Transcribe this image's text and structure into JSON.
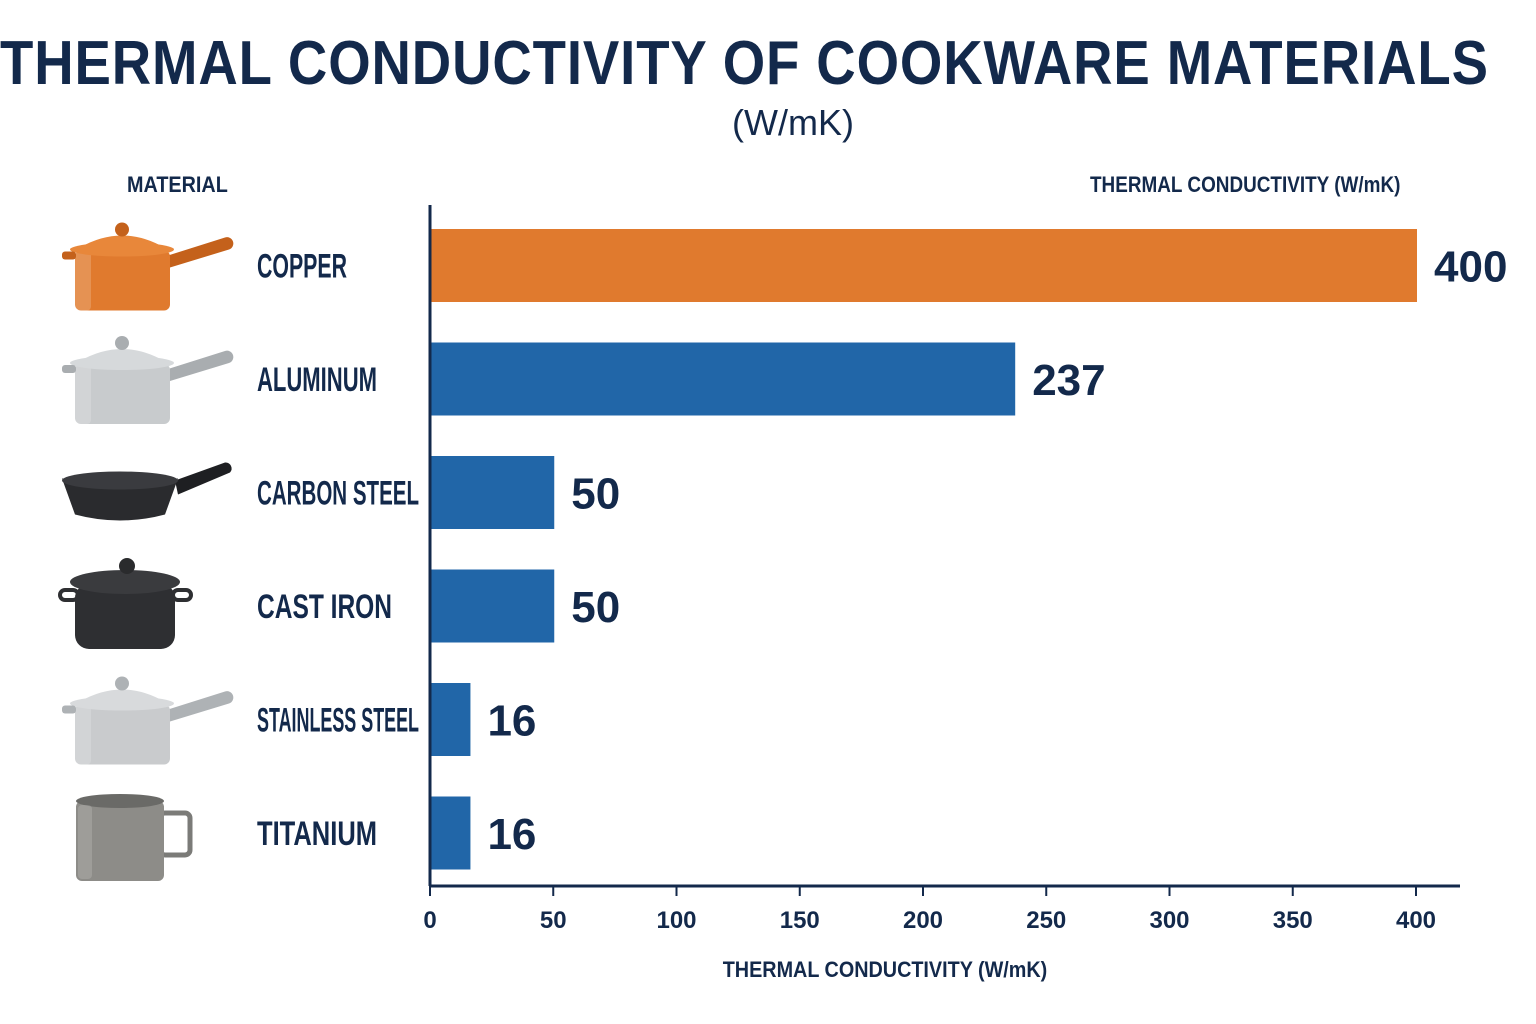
{
  "title": "THERMAL CONDUCTIVITY OF COOKWARE MATERIALS",
  "subtitle": "(W/mK)",
  "column_headers": {
    "left": "MATERIAL",
    "right": "THERMAL CONDUCTIVITY (W/mK)"
  },
  "colors": {
    "title": "#13294b",
    "highlight_bar": "#e07a2e",
    "bar": "#2166a8",
    "axis": "#13294b"
  },
  "chart_data": {
    "type": "bar",
    "orientation": "horizontal",
    "categories": [
      "COPPER",
      "ALUMINUM",
      "CARBON STEEL",
      "CAST IRON",
      "STAINLESS STEEL",
      "TITANIUM"
    ],
    "values": [
      400,
      237,
      50,
      50,
      16,
      16
    ],
    "data_labels": [
      "400",
      "237",
      "50",
      "50",
      "16",
      "16"
    ],
    "icons": [
      "copper-saucepan-icon",
      "aluminum-saucepan-icon",
      "carbon-steel-skillet-icon",
      "cast-iron-dutch-oven-icon",
      "stainless-steel-saucepan-icon",
      "titanium-mug-icon"
    ],
    "highlight_index": 0,
    "xlabel": "THERMAL CONDUCTIVITY (W/mK)",
    "xlim": [
      0,
      420
    ],
    "xticks": [
      0,
      50,
      100,
      150,
      200,
      250,
      300,
      350,
      400
    ],
    "grid": false,
    "legend": "none"
  }
}
